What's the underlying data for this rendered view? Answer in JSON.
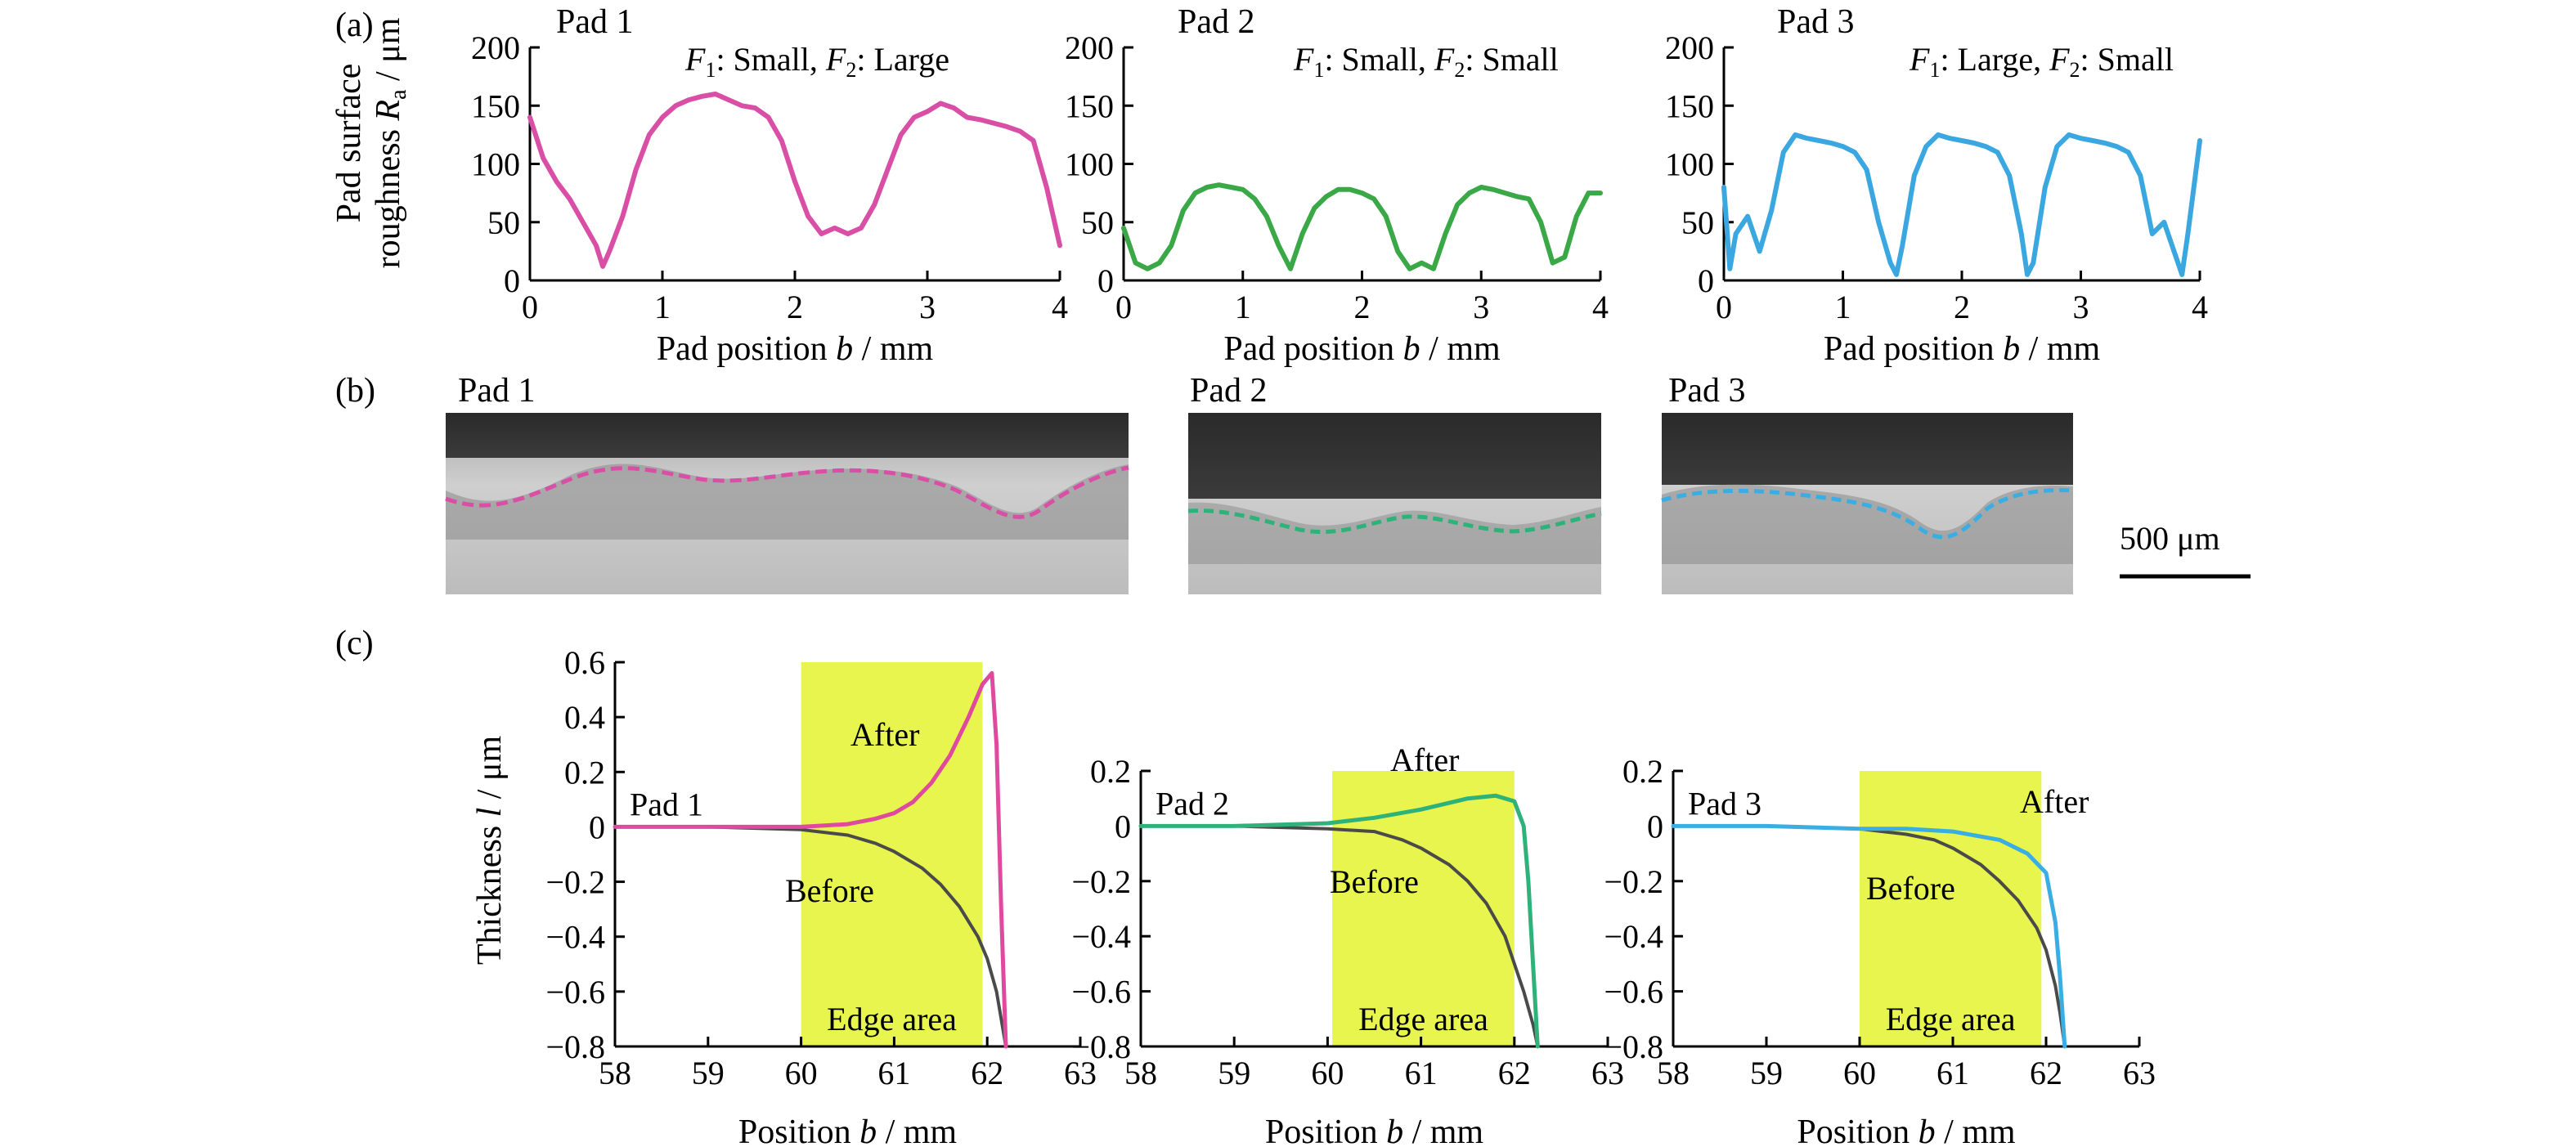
{
  "chart_data": [
    {
      "panel": "(a)",
      "type": "line",
      "title": "Pad 1",
      "annotation": "F1: Small, F2: Large",
      "annotation_parts": [
        "F",
        "1",
        ": Small, ",
        "F",
        "2",
        ": Large"
      ],
      "xlabel": "Pad position b / mm",
      "xlabel_parts": [
        "Pad position ",
        "b",
        " / mm"
      ],
      "ylabel_line1": "Pad surface",
      "ylabel_parts": [
        "roughness ",
        "R",
        "a",
        " / μm"
      ],
      "xlim": [
        0,
        4
      ],
      "ylim": [
        0,
        200
      ],
      "xticks": [
        0,
        1,
        2,
        3,
        4
      ],
      "yticks": [
        0,
        50,
        100,
        150,
        200
      ],
      "color": "#d94fa6",
      "series": [
        {
          "x": [
            0,
            0.1,
            0.2,
            0.3,
            0.4,
            0.5,
            0.55,
            0.6,
            0.7,
            0.8,
            0.9,
            1.0,
            1.1,
            1.2,
            1.3,
            1.4,
            1.5,
            1.6,
            1.7,
            1.8,
            1.9,
            2.0,
            2.1,
            2.2,
            2.3,
            2.4,
            2.5,
            2.6,
            2.7,
            2.8,
            2.9,
            3.0,
            3.1,
            3.2,
            3.3,
            3.4,
            3.5,
            3.6,
            3.7,
            3.8,
            3.9,
            4.0
          ],
          "y": [
            140,
            105,
            85,
            70,
            50,
            30,
            12,
            25,
            55,
            95,
            125,
            140,
            150,
            155,
            158,
            160,
            155,
            150,
            148,
            140,
            120,
            85,
            55,
            40,
            45,
            40,
            45,
            65,
            95,
            125,
            140,
            145,
            152,
            148,
            140,
            138,
            135,
            132,
            128,
            120,
            80,
            30
          ]
        }
      ]
    },
    {
      "panel": "(a)",
      "type": "line",
      "title": "Pad 2",
      "annotation": "F1: Small, F2: Small",
      "annotation_parts": [
        "F",
        "1",
        ": Small, ",
        "F",
        "2",
        ": Small"
      ],
      "xlabel": "Pad position b / mm",
      "xlabel_parts": [
        "Pad position ",
        "b",
        " / mm"
      ],
      "xlim": [
        0,
        4
      ],
      "ylim": [
        0,
        200
      ],
      "xticks": [
        0,
        1,
        2,
        3,
        4
      ],
      "yticks": [
        0,
        50,
        100,
        150,
        200
      ],
      "color": "#3aa846",
      "series": [
        {
          "x": [
            0,
            0.1,
            0.2,
            0.3,
            0.4,
            0.5,
            0.6,
            0.7,
            0.8,
            0.9,
            1.0,
            1.1,
            1.2,
            1.3,
            1.4,
            1.5,
            1.6,
            1.7,
            1.8,
            1.9,
            2.0,
            2.1,
            2.2,
            2.3,
            2.4,
            2.5,
            2.6,
            2.7,
            2.8,
            2.9,
            3.0,
            3.1,
            3.2,
            3.3,
            3.4,
            3.5,
            3.6,
            3.7,
            3.8,
            3.9,
            4.0
          ],
          "y": [
            45,
            15,
            10,
            15,
            30,
            60,
            75,
            80,
            82,
            80,
            78,
            70,
            55,
            30,
            10,
            40,
            62,
            72,
            78,
            78,
            75,
            70,
            55,
            25,
            10,
            15,
            10,
            40,
            65,
            75,
            80,
            78,
            75,
            72,
            70,
            50,
            15,
            20,
            55,
            75,
            75
          ]
        }
      ]
    },
    {
      "panel": "(a)",
      "type": "line",
      "title": "Pad 3",
      "annotation": "F1: Large, F2: Small",
      "annotation_parts": [
        "F",
        "1",
        ": Large, ",
        "F",
        "2",
        ": Small"
      ],
      "xlabel": "Pad position b / mm",
      "xlabel_parts": [
        "Pad position ",
        "b",
        " / mm"
      ],
      "xlim": [
        0,
        4
      ],
      "ylim": [
        0,
        200
      ],
      "xticks": [
        0,
        1,
        2,
        3,
        4
      ],
      "yticks": [
        0,
        50,
        100,
        150,
        200
      ],
      "color": "#3ba7e0",
      "series": [
        {
          "x": [
            0,
            0.05,
            0.1,
            0.2,
            0.3,
            0.4,
            0.5,
            0.6,
            0.7,
            0.8,
            0.9,
            1.0,
            1.1,
            1.2,
            1.3,
            1.4,
            1.45,
            1.5,
            1.6,
            1.7,
            1.8,
            1.9,
            2.0,
            2.1,
            2.2,
            2.3,
            2.4,
            2.5,
            2.55,
            2.6,
            2.7,
            2.8,
            2.9,
            3.0,
            3.1,
            3.2,
            3.3,
            3.4,
            3.5,
            3.6,
            3.7,
            3.8,
            3.85,
            3.9,
            4.0
          ],
          "y": [
            80,
            10,
            40,
            55,
            25,
            60,
            110,
            125,
            122,
            120,
            118,
            115,
            110,
            95,
            50,
            15,
            5,
            30,
            90,
            115,
            125,
            122,
            120,
            118,
            115,
            110,
            90,
            40,
            5,
            15,
            80,
            115,
            125,
            122,
            120,
            118,
            115,
            110,
            90,
            40,
            50,
            20,
            5,
            40,
            120
          ]
        }
      ]
    },
    {
      "panel": "(c)",
      "type": "line",
      "title": "Pad 1",
      "xlabel": "Position b / mm",
      "xlabel_parts": [
        "Position ",
        "b",
        " / mm"
      ],
      "ylabel": "Thickness l / μm",
      "ylabel_parts": [
        "Thickness ",
        "l",
        " / μm"
      ],
      "xlim": [
        58,
        63
      ],
      "ylim": [
        -0.8,
        0.6
      ],
      "xticks": [
        58,
        59,
        60,
        61,
        62,
        63
      ],
      "yticks": [
        -0.8,
        -0.6,
        -0.4,
        -0.2,
        0,
        0.2,
        0.4,
        0.6
      ],
      "ytick_labels": [
        "−0.8",
        "−0.6",
        "−0.4",
        "−0.2",
        "0",
        "0.2",
        "0.4",
        "0.6"
      ],
      "region": {
        "x0": 60,
        "x1": 61.95,
        "label": "Edge area",
        "color": "#e7f54e"
      },
      "labels": {
        "before": "Before",
        "after": "After"
      },
      "series": [
        {
          "role": "before",
          "color": "#4a4a4a",
          "x": [
            58,
            59,
            60,
            60.5,
            60.8,
            61.0,
            61.3,
            61.5,
            61.7,
            61.9,
            62.0,
            62.1,
            62.15,
            62.2
          ],
          "y": [
            0,
            0,
            -0.01,
            -0.03,
            -0.06,
            -0.09,
            -0.15,
            -0.21,
            -0.29,
            -0.4,
            -0.48,
            -0.6,
            -0.7,
            -0.8
          ]
        },
        {
          "role": "after",
          "color": "#e04a9e",
          "x": [
            58,
            59,
            60,
            60.5,
            60.8,
            61.0,
            61.2,
            61.4,
            61.6,
            61.8,
            61.95,
            62.05,
            62.1,
            62.15,
            62.2
          ],
          "y": [
            0,
            0,
            0,
            0.01,
            0.03,
            0.05,
            0.09,
            0.16,
            0.26,
            0.4,
            0.52,
            0.56,
            0.3,
            -0.3,
            -0.8
          ]
        }
      ]
    },
    {
      "panel": "(c)",
      "type": "line",
      "title": "Pad 2",
      "xlabel": "Position b / mm",
      "xlabel_parts": [
        "Position ",
        "b",
        " / mm"
      ],
      "xlim": [
        58,
        63
      ],
      "ylim": [
        -0.8,
        0.2
      ],
      "xticks": [
        58,
        59,
        60,
        61,
        62,
        63
      ],
      "yticks": [
        -0.8,
        -0.6,
        -0.4,
        -0.2,
        0,
        0.2
      ],
      "ytick_labels": [
        "−0.8",
        "−0.6",
        "−0.4",
        "−0.2",
        "0",
        "0.2"
      ],
      "region": {
        "x0": 60.05,
        "x1": 62.0,
        "label": "Edge area",
        "color": "#e7f54e"
      },
      "labels": {
        "before": "Before",
        "after": "After"
      },
      "series": [
        {
          "role": "before",
          "color": "#4a4a4a",
          "x": [
            58,
            59,
            60,
            60.5,
            60.8,
            61.0,
            61.3,
            61.5,
            61.7,
            61.9,
            62.0,
            62.1,
            62.2,
            62.25
          ],
          "y": [
            0,
            0,
            -0.01,
            -0.02,
            -0.05,
            -0.08,
            -0.14,
            -0.2,
            -0.28,
            -0.4,
            -0.5,
            -0.6,
            -0.72,
            -0.8
          ]
        },
        {
          "role": "after",
          "color": "#2fb27a",
          "x": [
            58,
            59,
            60,
            60.5,
            61.0,
            61.5,
            61.8,
            62.0,
            62.1,
            62.15,
            62.2,
            62.25
          ],
          "y": [
            0,
            0,
            0.01,
            0.03,
            0.06,
            0.1,
            0.11,
            0.09,
            0.0,
            -0.2,
            -0.5,
            -0.8
          ]
        }
      ]
    },
    {
      "panel": "(c)",
      "type": "line",
      "title": "Pad 3",
      "xlabel": "Position b / mm",
      "xlabel_parts": [
        "Position ",
        "b",
        " / mm"
      ],
      "xlim": [
        58,
        63
      ],
      "ylim": [
        -0.8,
        0.2
      ],
      "xticks": [
        58,
        59,
        60,
        61,
        62,
        63
      ],
      "yticks": [
        -0.8,
        -0.6,
        -0.4,
        -0.2,
        0,
        0.2
      ],
      "ytick_labels": [
        "−0.8",
        "−0.6",
        "−0.4",
        "−0.2",
        "0",
        "0.2"
      ],
      "region": {
        "x0": 60,
        "x1": 61.95,
        "label": "Edge area",
        "color": "#e7f54e"
      },
      "labels": {
        "before": "Before",
        "after": "After"
      },
      "series": [
        {
          "role": "before",
          "color": "#4a4a4a",
          "x": [
            58,
            59,
            60,
            60.5,
            60.8,
            61.0,
            61.3,
            61.5,
            61.7,
            61.9,
            62.0,
            62.1,
            62.15,
            62.2
          ],
          "y": [
            0,
            0,
            -0.01,
            -0.03,
            -0.05,
            -0.08,
            -0.14,
            -0.2,
            -0.27,
            -0.37,
            -0.45,
            -0.58,
            -0.68,
            -0.8
          ]
        },
        {
          "role": "after",
          "color": "#3aaee3",
          "x": [
            58,
            59,
            60,
            60.5,
            61.0,
            61.5,
            61.8,
            62.0,
            62.1,
            62.15,
            62.2
          ],
          "y": [
            0,
            0,
            -0.01,
            -0.01,
            -0.02,
            -0.05,
            -0.1,
            -0.17,
            -0.35,
            -0.55,
            -0.8
          ]
        }
      ]
    }
  ],
  "figure": {
    "panel_a": "(a)",
    "panel_b": "(b)",
    "panel_c": "(c)",
    "micrographs": [
      {
        "label": "Pad 1",
        "profile_color": "#d94fa6"
      },
      {
        "label": "Pad 2",
        "profile_color": "#2fb27a"
      },
      {
        "label": "Pad 3",
        "profile_color": "#3aaee3"
      }
    ],
    "scale_bar": "500 μm"
  }
}
